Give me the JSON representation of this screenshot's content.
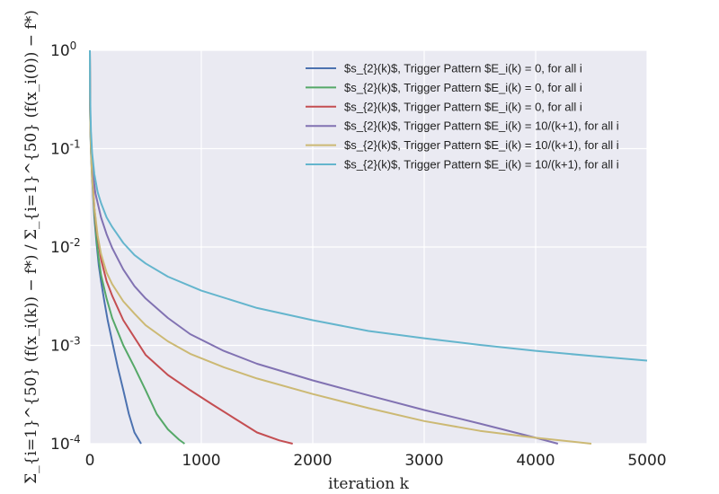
{
  "chart_data": {
    "type": "line",
    "title": "",
    "xlabel": "iteration k",
    "ylabel": "Σ_{i=1}^{50} (f(x_i(k)) − f*) / Σ_{i=1}^{50} (f(x_i(0)) − f*)",
    "xlim": [
      0,
      5000
    ],
    "ylim": [
      0.0001,
      1
    ],
    "yscale": "log",
    "grid": true,
    "legend_position": "top-right",
    "x_ticks": [
      "0",
      "1000",
      "2000",
      "3000",
      "4000",
      "5000"
    ],
    "y_ticks": [
      {
        "base": "10",
        "exp": "-4",
        "value": 0.0001
      },
      {
        "base": "10",
        "exp": "-3",
        "value": 0.001
      },
      {
        "base": "10",
        "exp": "-2",
        "value": 0.01
      },
      {
        "base": "10",
        "exp": "-1",
        "value": 0.1
      },
      {
        "base": "10",
        "exp": "0",
        "value": 1
      }
    ],
    "series": [
      {
        "name": "$s_{2}(k)$, Trigger Pattern $E_i(k) = 0, for all i",
        "color": "#4c72b0",
        "points": [
          [
            0,
            1
          ],
          [
            2,
            0.3
          ],
          [
            5,
            0.15
          ],
          [
            10,
            0.09
          ],
          [
            20,
            0.05
          ],
          [
            40,
            0.02
          ],
          [
            60,
            0.011
          ],
          [
            80,
            0.0065
          ],
          [
            100,
            0.0045
          ],
          [
            130,
            0.0028
          ],
          [
            160,
            0.0018
          ],
          [
            200,
            0.0011
          ],
          [
            250,
            0.0006
          ],
          [
            300,
            0.00035
          ],
          [
            350,
            0.0002
          ],
          [
            400,
            0.00013
          ],
          [
            460,
            0.0001
          ]
        ]
      },
      {
        "name": "$s_{2}(k)$, Trigger Pattern $E_i(k) = 0, for all i",
        "color": "#55a868",
        "points": [
          [
            0,
            1
          ],
          [
            2,
            0.3
          ],
          [
            5,
            0.16
          ],
          [
            10,
            0.1
          ],
          [
            20,
            0.055
          ],
          [
            40,
            0.022
          ],
          [
            60,
            0.012
          ],
          [
            80,
            0.0075
          ],
          [
            100,
            0.0052
          ],
          [
            150,
            0.003
          ],
          [
            200,
            0.0019
          ],
          [
            300,
            0.001
          ],
          [
            400,
            0.0006
          ],
          [
            500,
            0.00035
          ],
          [
            600,
            0.0002
          ],
          [
            700,
            0.00014
          ],
          [
            800,
            0.00011
          ],
          [
            850,
            0.0001
          ]
        ]
      },
      {
        "name": "$s_{2}(k)$, Trigger Pattern $E_i(k) = 0, for all i",
        "color": "#c44e52",
        "points": [
          [
            0,
            1
          ],
          [
            2,
            0.3
          ],
          [
            5,
            0.17
          ],
          [
            10,
            0.11
          ],
          [
            20,
            0.06
          ],
          [
            40,
            0.025
          ],
          [
            60,
            0.015
          ],
          [
            100,
            0.0075
          ],
          [
            150,
            0.0045
          ],
          [
            200,
            0.0032
          ],
          [
            300,
            0.0018
          ],
          [
            400,
            0.0012
          ],
          [
            500,
            0.0008
          ],
          [
            700,
            0.0005
          ],
          [
            900,
            0.00035
          ],
          [
            1100,
            0.00025
          ],
          [
            1300,
            0.00018
          ],
          [
            1500,
            0.00013
          ],
          [
            1700,
            0.000108
          ],
          [
            1820,
            0.0001
          ]
        ]
      },
      {
        "name": "$s_{2}(k)$, Trigger Pattern $E_i(k) = 10/(k+1), for all i",
        "color": "#8172b2",
        "points": [
          [
            0,
            1
          ],
          [
            2,
            0.35
          ],
          [
            5,
            0.2
          ],
          [
            10,
            0.12
          ],
          [
            20,
            0.065
          ],
          [
            50,
            0.035
          ],
          [
            100,
            0.02
          ],
          [
            150,
            0.0135
          ],
          [
            200,
            0.0098
          ],
          [
            300,
            0.0059
          ],
          [
            400,
            0.004
          ],
          [
            500,
            0.003
          ],
          [
            700,
            0.0019
          ],
          [
            900,
            0.0013
          ],
          [
            1200,
            0.00088
          ],
          [
            1500,
            0.00065
          ],
          [
            2000,
            0.00044
          ],
          [
            2500,
            0.00031
          ],
          [
            3000,
            0.00022
          ],
          [
            3500,
            0.00016
          ],
          [
            4000,
            0.000115
          ],
          [
            4200,
            0.0001
          ]
        ]
      },
      {
        "name": "$s_{2}(k)$, Trigger Pattern $E_i(k) = 10/(k+1), for all i",
        "color": "#ccb974",
        "points": [
          [
            0,
            1
          ],
          [
            2,
            0.3
          ],
          [
            5,
            0.16
          ],
          [
            10,
            0.1
          ],
          [
            20,
            0.05
          ],
          [
            40,
            0.025
          ],
          [
            70,
            0.013
          ],
          [
            100,
            0.0085
          ],
          [
            150,
            0.0055
          ],
          [
            200,
            0.0042
          ],
          [
            300,
            0.0028
          ],
          [
            400,
            0.0021
          ],
          [
            500,
            0.0016
          ],
          [
            700,
            0.0011
          ],
          [
            900,
            0.00082
          ],
          [
            1200,
            0.0006
          ],
          [
            1500,
            0.00046
          ],
          [
            2000,
            0.00032
          ],
          [
            2500,
            0.00023
          ],
          [
            3000,
            0.00017
          ],
          [
            3500,
            0.000135
          ],
          [
            4000,
            0.000115
          ],
          [
            4500,
            0.0001
          ]
        ]
      },
      {
        "name": "$s_{2}(k)$, Trigger Pattern $E_i(k) = 10/(k+1), for all i",
        "color": "#64b5cd",
        "points": [
          [
            0,
            1
          ],
          [
            2,
            0.4
          ],
          [
            5,
            0.25
          ],
          [
            10,
            0.15
          ],
          [
            20,
            0.09
          ],
          [
            40,
            0.055
          ],
          [
            70,
            0.036
          ],
          [
            100,
            0.028
          ],
          [
            150,
            0.02
          ],
          [
            200,
            0.016
          ],
          [
            300,
            0.011
          ],
          [
            400,
            0.0083
          ],
          [
            500,
            0.0068
          ],
          [
            700,
            0.005
          ],
          [
            1000,
            0.0036
          ],
          [
            1500,
            0.0024
          ],
          [
            2000,
            0.0018
          ],
          [
            2500,
            0.0014
          ],
          [
            3000,
            0.00118
          ],
          [
            3500,
            0.00101
          ],
          [
            4000,
            0.00088
          ],
          [
            4500,
            0.00078
          ],
          [
            5000,
            0.0007
          ]
        ]
      }
    ]
  }
}
